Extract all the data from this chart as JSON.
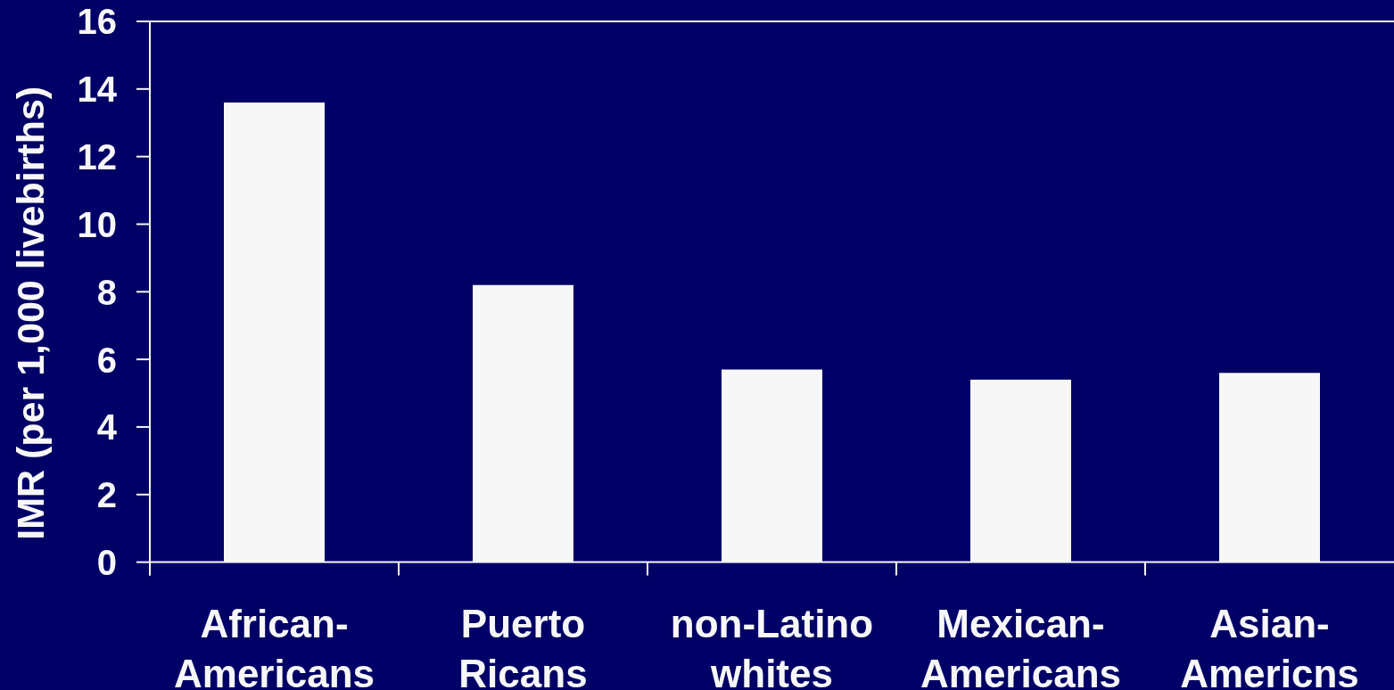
{
  "chart_data": {
    "type": "bar",
    "ylabel": "IMR (per 1,000 livebirths)",
    "categories": [
      "African-Americans",
      "Puerto Ricans",
      "non-Latino whites",
      "Mexican-Americans",
      "Asian-Americns"
    ],
    "values": [
      13.6,
      8.2,
      5.7,
      5.4,
      5.6
    ],
    "color": "#f7f7f7",
    "ylim": [
      0,
      16
    ],
    "yticks": [
      0,
      2,
      4,
      6,
      8,
      10,
      12,
      14,
      16
    ]
  }
}
